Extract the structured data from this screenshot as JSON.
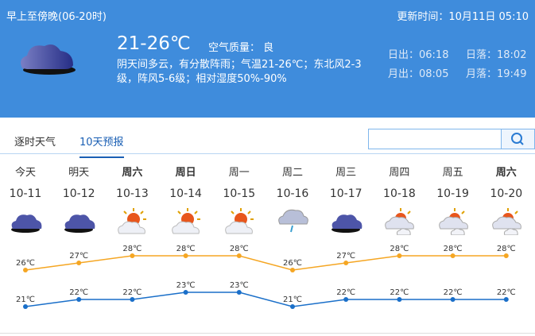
{
  "header": {
    "period": "早上至傍晚(06-20时)",
    "update_time": "更新时间：10月11日 05:10",
    "temperature": "21-26℃",
    "air_quality": "空气质量： 良",
    "description": "阴天间多云，有分散阵雨；气温21-26℃；东北风2-3级，阵风5-6级；相对湿度50%-90%",
    "sunrise": "日出：06:18",
    "sunset": "日落：18:02",
    "moonrise": "月出：08:05",
    "moonset": "月落：19:49",
    "icon": "overcast-cloud-icon"
  },
  "tabs": [
    {
      "label": "逐时天气",
      "active": false
    },
    {
      "label": "10天预报",
      "active": true
    }
  ],
  "search": {
    "value": "",
    "placeholder": "",
    "icon": "search-icon"
  },
  "colors": {
    "high": "#f5a623",
    "low": "#1a6fc9",
    "header_bg": "#3f8cdc"
  },
  "days": [
    {
      "weekday": "今天",
      "date": "10-11",
      "icon": "overcast",
      "bold": false
    },
    {
      "weekday": "明天",
      "date": "10-12",
      "icon": "overcast",
      "bold": false
    },
    {
      "weekday": "周六",
      "date": "10-13",
      "icon": "sun-cloud",
      "bold": true
    },
    {
      "weekday": "周日",
      "date": "10-14",
      "icon": "sun-cloud",
      "bold": true
    },
    {
      "weekday": "周一",
      "date": "10-15",
      "icon": "sun-cloud",
      "bold": false
    },
    {
      "weekday": "周二",
      "date": "10-16",
      "icon": "shower",
      "bold": false
    },
    {
      "weekday": "周三",
      "date": "10-17",
      "icon": "overcast",
      "bold": false
    },
    {
      "weekday": "周四",
      "date": "10-18",
      "icon": "partly-cloudy",
      "bold": false
    },
    {
      "weekday": "周五",
      "date": "10-19",
      "icon": "partly-cloudy",
      "bold": false
    },
    {
      "weekday": "周六",
      "date": "10-20",
      "icon": "partly-cloudy",
      "bold": true
    }
  ],
  "chart_data": {
    "type": "line",
    "categories": [
      "10-11",
      "10-12",
      "10-13",
      "10-14",
      "10-15",
      "10-16",
      "10-17",
      "10-18",
      "10-19",
      "10-20"
    ],
    "series": [
      {
        "values": [
          26,
          27,
          28,
          28,
          28,
          26,
          27,
          28,
          28,
          28
        ]
      },
      {
        "values": [
          21,
          22,
          22,
          23,
          23,
          21,
          22,
          22,
          22,
          22
        ]
      }
    ],
    "unit": "℃"
  }
}
